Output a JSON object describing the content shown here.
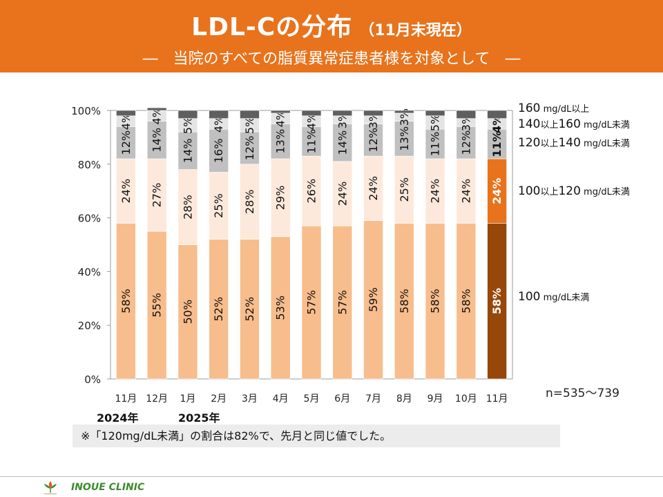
{
  "header": {
    "title": "LDL-Cの分布",
    "title_note": "（11月末現在）",
    "subtitle": "―　当院のすべての脂質異常症患者様を対象として　―"
  },
  "colors": {
    "header_bg": "#e8731c",
    "lt100": "#f8bd8c",
    "r100_120": "#fde9db",
    "r120_140": "#c0c0c0",
    "r140_160": "#e4e4e4",
    "ge160": "#5f5f5f",
    "current_lt100": "#974709",
    "current_100_120": "#e8731c",
    "clinic_green": "#3d8a2e"
  },
  "chart_data": {
    "type": "bar",
    "stacked": true,
    "categories": [
      "11月",
      "12月",
      "1月",
      "2月",
      "3月",
      "4月",
      "5月",
      "6月",
      "7月",
      "8月",
      "9月",
      "10月",
      "11月"
    ],
    "series": [
      {
        "name": "100 mg/dL未満",
        "values": [
          58,
          55,
          50,
          52,
          52,
          53,
          57,
          57,
          59,
          58,
          58,
          58,
          58
        ]
      },
      {
        "name": "100以上120 mg/dL未満",
        "values": [
          24,
          27,
          28,
          25,
          28,
          29,
          26,
          24,
          24,
          25,
          24,
          24,
          24
        ]
      },
      {
        "name": "120以上140 mg/dL未満",
        "values": [
          12,
          14,
          14,
          16,
          12,
          13,
          11,
          14,
          12,
          13,
          11,
          12,
          11
        ]
      },
      {
        "name": "140以上160 mg/dL未満",
        "values": [
          4,
          4,
          5,
          4,
          5,
          4,
          4,
          3,
          3,
          3,
          5,
          3,
          4
        ]
      },
      {
        "name": "160 mg/dL以上",
        "values": [
          2,
          1,
          3,
          3,
          3,
          1,
          2,
          2,
          2,
          1,
          2,
          3,
          3
        ]
      }
    ],
    "labels": [
      [
        "58%",
        "55%",
        "50%",
        "52%",
        "52%",
        "53%",
        "57%",
        "57%",
        "59%",
        "58%",
        "58%",
        "58%",
        "58%"
      ],
      [
        "24%",
        "27%",
        "28%",
        "25%",
        "28%",
        "29%",
        "26%",
        "24%",
        "24%",
        "25%",
        "24%",
        "24%",
        "24%"
      ],
      [
        "12%",
        "14%",
        "14%",
        "16%",
        "12%",
        "13%",
        "11%",
        "14%",
        "12%",
        "13%",
        "11%",
        "12%",
        "11%"
      ],
      [
        "4%",
        "4%",
        "5%",
        "4%",
        "5%",
        "4%",
        "4%",
        "3%",
        "3%",
        "3%",
        "5%",
        "3%",
        "4%"
      ]
    ],
    "y_ticks": [
      "0%",
      "20%",
      "40%",
      "60%",
      "80%",
      "100%"
    ],
    "ylim": [
      0,
      100
    ],
    "highlight_index": 12,
    "grid": false
  },
  "legend": {
    "ge160": {
      "value": "160",
      "unit": " mg/dL以上"
    },
    "r140_160": {
      "lower": "140",
      "sep": "以上",
      "upper": "160",
      "unit": " mg/dL未満"
    },
    "r120_140": {
      "lower": "120",
      "sep": "以上",
      "upper": "140",
      "unit": " mg/dL未満"
    },
    "r100_120": {
      "lower": "100",
      "sep": "以上",
      "upper": "120",
      "unit": " mg/dL未満"
    },
    "lt100": {
      "value": "100",
      "unit": " mg/dL未満"
    }
  },
  "sample_size": "n=535～739",
  "years": {
    "y2024": "2024年",
    "y2025": "2025年"
  },
  "footnote": "※「120mg/dL未満」の割合は82%で、先月と同じ値でした。",
  "footer": {
    "clinic_name": "INOUE CLINIC"
  }
}
